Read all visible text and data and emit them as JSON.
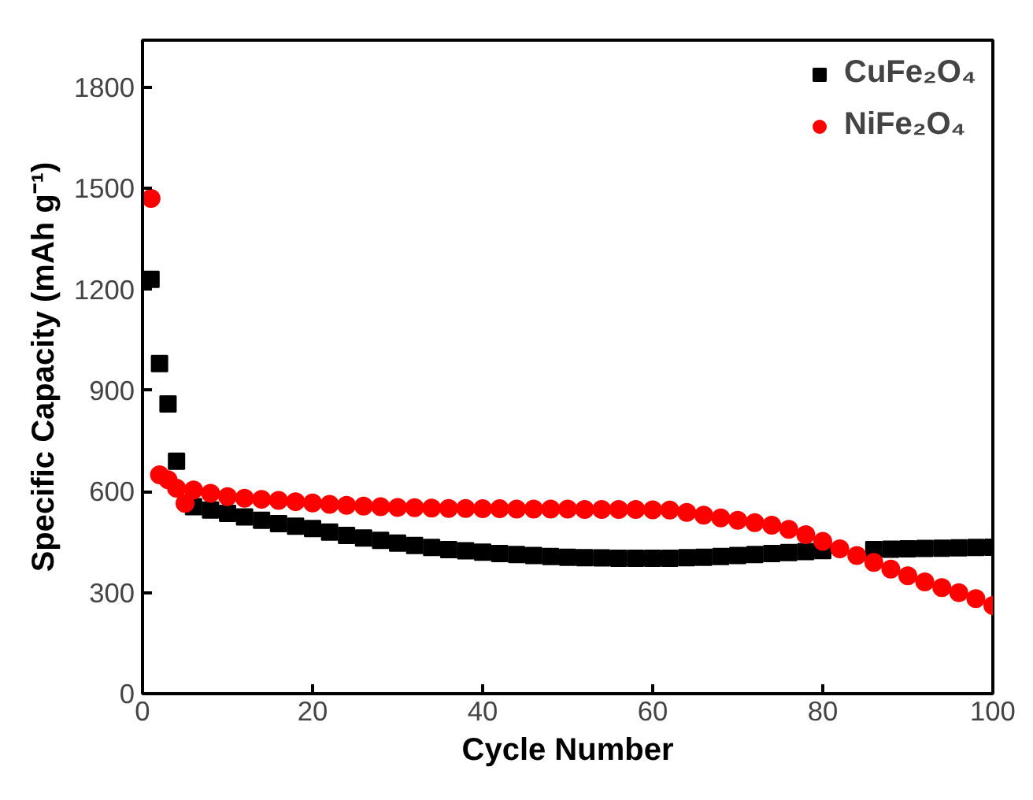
{
  "chart_data": {
    "type": "scatter",
    "xlabel": "Cycle Number",
    "ylabel": "Specific Capacity (mAh g⁻¹)",
    "xlim": [
      0,
      100
    ],
    "ylim": [
      0,
      1940
    ],
    "xticks": [
      0,
      20,
      40,
      60,
      80,
      100
    ],
    "yticks": [
      0,
      300,
      600,
      900,
      1200,
      1500,
      1800
    ],
    "grid": false,
    "legend": "top right",
    "series": [
      {
        "name": "CuFe₂O₄",
        "color": "#000000",
        "marker": "square",
        "x": [
          1,
          2,
          3,
          4,
          5,
          6,
          8,
          10,
          12,
          14,
          16,
          18,
          20,
          22,
          24,
          26,
          28,
          30,
          32,
          34,
          36,
          38,
          40,
          42,
          44,
          46,
          48,
          50,
          52,
          54,
          56,
          58,
          60,
          62,
          64,
          66,
          68,
          70,
          72,
          74,
          76,
          78,
          80,
          82,
          84,
          86,
          88,
          90,
          92,
          94,
          96,
          98,
          100
        ],
        "values": [
          1230,
          980,
          860,
          690,
          null,
          555,
          545,
          535,
          525,
          515,
          505,
          497,
          490,
          480,
          470,
          462,
          455,
          447,
          440,
          434,
          428,
          424,
          420,
          416,
          413,
          410,
          407,
          405,
          404,
          403,
          402,
          402,
          402,
          402,
          404,
          405,
          407,
          410,
          413,
          416,
          419,
          422,
          425,
          null,
          null,
          428,
          429,
          430,
          431,
          432,
          433,
          434,
          435
        ]
      },
      {
        "name": "NiFe₂O₄",
        "color": "#ff0000",
        "marker": "circle",
        "x": [
          1,
          2,
          3,
          4,
          5,
          6,
          8,
          10,
          12,
          14,
          16,
          18,
          20,
          22,
          24,
          26,
          28,
          30,
          32,
          34,
          36,
          38,
          40,
          42,
          44,
          46,
          48,
          50,
          52,
          54,
          56,
          58,
          60,
          62,
          64,
          66,
          68,
          70,
          72,
          74,
          76,
          78,
          80,
          82,
          84,
          86,
          88,
          90,
          92,
          94,
          96,
          98,
          100
        ],
        "values": [
          1470,
          650,
          635,
          610,
          565,
          605,
          595,
          585,
          580,
          577,
          574,
          570,
          566,
          562,
          559,
          557,
          555,
          553,
          552,
          551,
          550,
          550,
          549,
          549,
          548,
          548,
          548,
          548,
          547,
          547,
          547,
          547,
          546,
          545,
          538,
          530,
          522,
          515,
          508,
          500,
          488,
          472,
          452,
          430,
          410,
          390,
          370,
          350,
          332,
          315,
          300,
          282,
          262
        ]
      }
    ]
  }
}
